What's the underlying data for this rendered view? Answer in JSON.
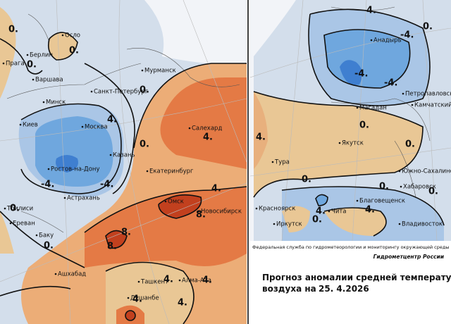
{
  "left_map": {
    "cities": [
      "Осло",
      "Берлин",
      "Прага",
      "Варшава",
      "Санкт-Петербург",
      "Мурманск",
      "Минск",
      "Киев",
      "Москва",
      "Казань",
      "Ростов-на-Дону",
      "Астрахань",
      "Екатеринбург",
      "Салехард",
      "Тбилиси",
      "Ереван",
      "Баку",
      "Омск",
      "Новосибирск",
      "Ашхабад",
      "Ташкент",
      "Алма-Ата",
      "Душанбе"
    ],
    "contour_labels": [
      "0.",
      "0.",
      "0.",
      "0.",
      "4.",
      "0.",
      "-4.",
      "-4.",
      "4.",
      "0.",
      "0.",
      "4.",
      "8.",
      "8.",
      "8.",
      "4.",
      "4.",
      "4.",
      "4."
    ]
  },
  "right_map": {
    "cities": [
      "Анадырь",
      "Петропавловск",
      "Магадан",
      "Камчатский",
      "Якутск",
      "Тура",
      "Южно-Сахалинск",
      "Хабаровск",
      "Благовещенск",
      "Чита",
      "Красноярск",
      "Иркутск",
      "Владивосток"
    ],
    "contour_labels": [
      "4.",
      "-4.",
      "-4.",
      "-4.",
      "0.",
      "0.",
      "0.",
      "4.",
      "0.",
      "0.",
      "0.",
      "4.",
      "4.",
      "0."
    ]
  },
  "caption": {
    "agency": "Федеральная служба по гидрометеорологии и мониторингу окружающей среды",
    "center": "Гидрометцентр России",
    "title": "Прогноз аномалии средней температуры",
    "subtitle": "воздуха на",
    "date": "25. 4.2026"
  }
}
